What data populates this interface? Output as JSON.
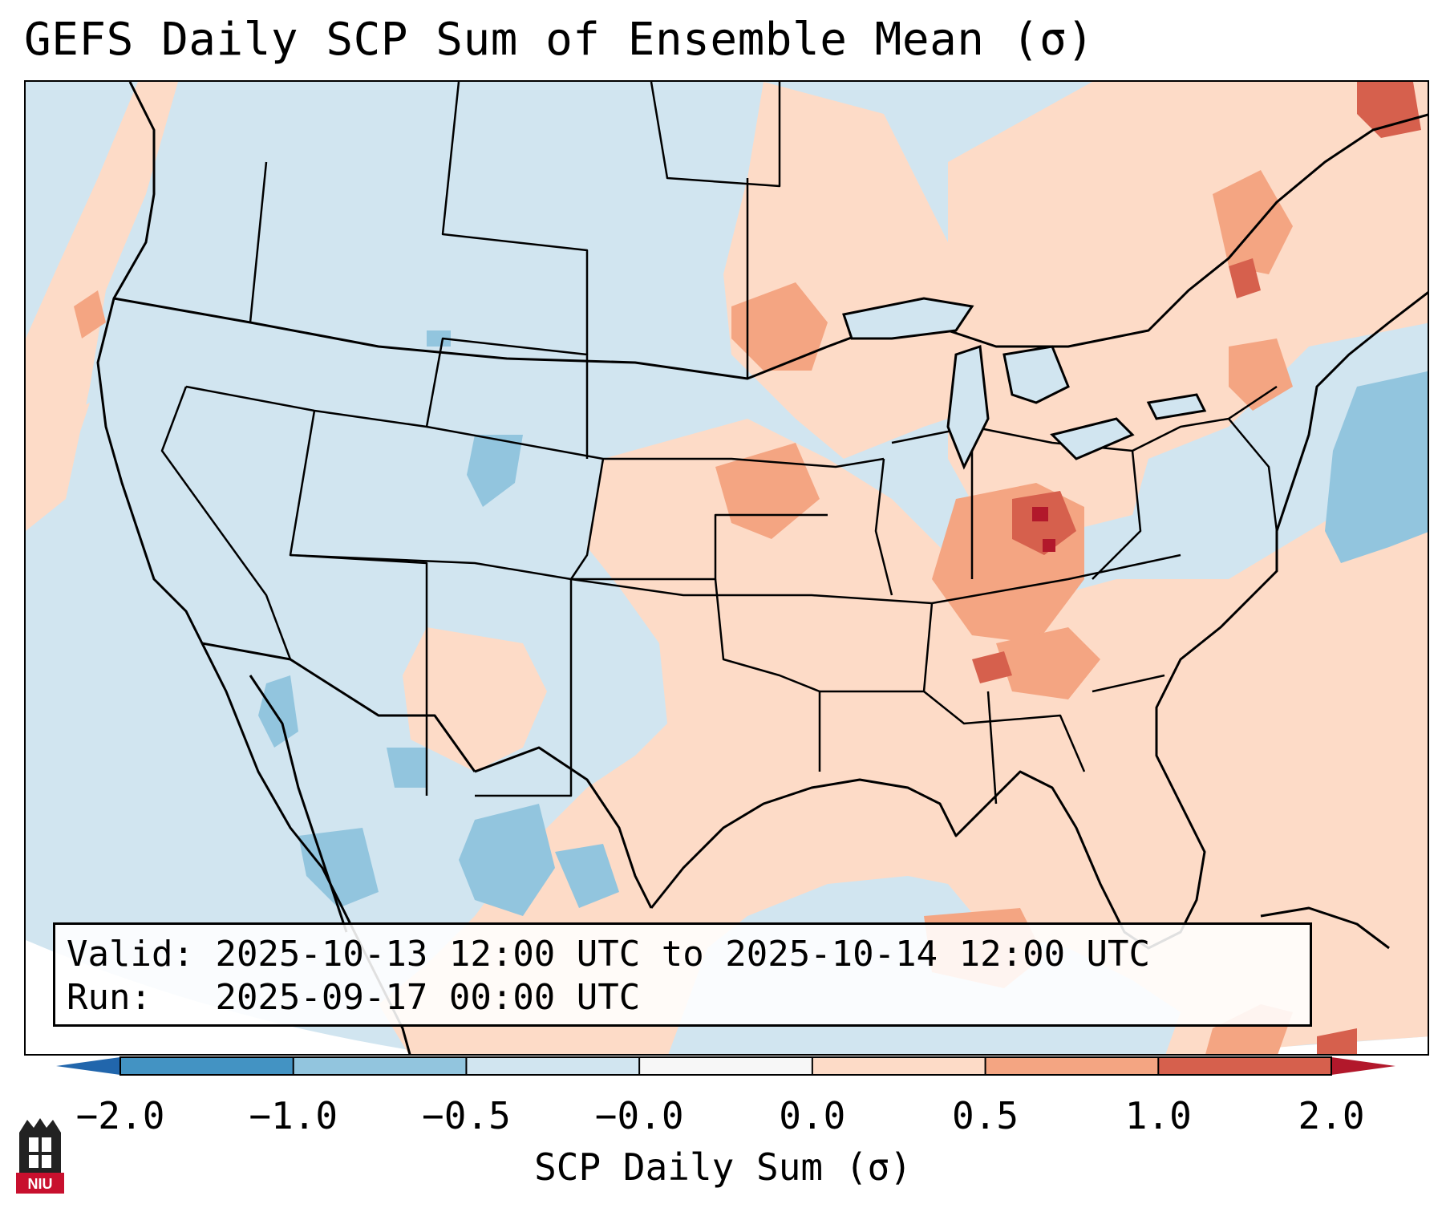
{
  "title": "GEFS Daily SCP Sum of Ensemble Mean (σ)",
  "info": {
    "valid_label": "Valid:",
    "valid_value": "2025-10-13 12:00 UTC to 2025-10-14 12:00 UTC",
    "run_label": "Run:",
    "run_value": "2025-09-17 00:00 UTC"
  },
  "colorbar": {
    "label": "SCP Daily Sum (σ)",
    "ticks": [
      "−2.0",
      "−1.0",
      "−0.5",
      "−0.0",
      "0.0",
      "0.5",
      "1.0",
      "2.0"
    ],
    "bins": [
      {
        "range": "-2.0 to -1.0",
        "color": "#4393c3"
      },
      {
        "range": "-1.0 to -0.5",
        "color": "#92c5de"
      },
      {
        "range": "-0.5 to -0.0",
        "color": "#d1e5f0"
      },
      {
        "range": "-0.0 to 0.0",
        "color": "#f7f7f7"
      },
      {
        "range": "0.0 to 0.5",
        "color": "#fddbc7"
      },
      {
        "range": "0.5 to 1.0",
        "color": "#f4a582"
      },
      {
        "range": "1.0 to 2.0",
        "color": "#d6604d"
      }
    ],
    "under_color": "#2166ac",
    "over_color": "#b2182b"
  },
  "logo": {
    "text": "NIU",
    "color": "#c8102e"
  },
  "colors": {
    "background_field": "#d1e5f0",
    "outline": "#000000"
  }
}
